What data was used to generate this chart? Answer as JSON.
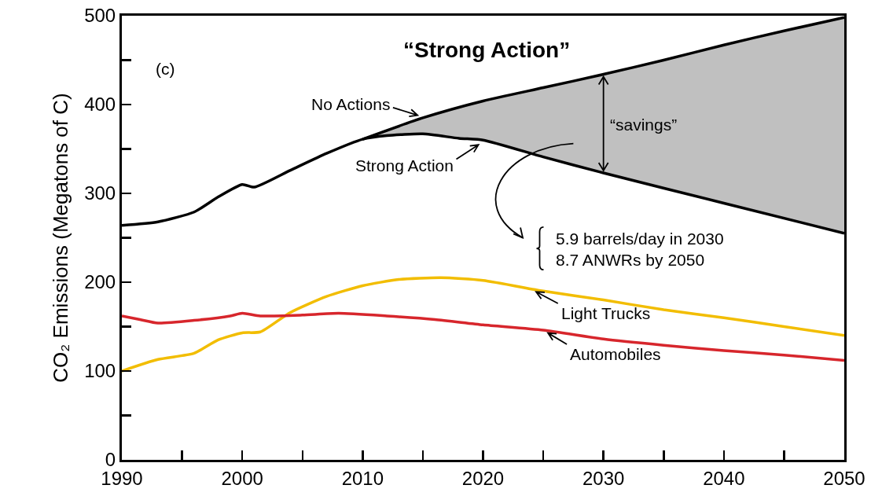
{
  "chart_data": {
    "type": "line",
    "title": "“Strong Action”",
    "ylabel": "CO₂ Emissions (Megatons of C)",
    "xlim": [
      1990,
      2050
    ],
    "ylim": [
      0,
      500
    ],
    "xticks": [
      1990,
      {
        "value": 1995,
        "label": null
      },
      2000,
      {
        "value": 2005,
        "label": null
      },
      2010,
      {
        "value": 2015,
        "label": null
      },
      2020,
      {
        "value": 2025,
        "label": null
      },
      2030,
      {
        "value": 2035,
        "label": null
      },
      2040,
      {
        "value": 2045,
        "label": null
      },
      2050
    ],
    "yticks": [
      0,
      {
        "value": 50,
        "label": null
      },
      100,
      {
        "value": 150,
        "label": null
      },
      200,
      {
        "value": 250,
        "label": null
      },
      300,
      {
        "value": 350,
        "label": null
      },
      400,
      {
        "value": 450,
        "label": null
      },
      500
    ],
    "grid": false,
    "series": [
      {
        "color": "#000000",
        "x": [
          2010,
          2015,
          2020,
          2025,
          2030,
          2035,
          2040,
          2045,
          2050
        ],
        "values": [
          361,
          385,
          404,
          419,
          434,
          450,
          467,
          483,
          498
        ]
      },
      {
        "color": "#000000",
        "x": [
          1990,
          1993,
          1996,
          1998,
          2000,
          2001,
          2004,
          2007,
          2010,
          2012,
          2015,
          2018,
          2020,
          2025,
          2030,
          2040,
          2050
        ],
        "values": [
          264,
          268,
          279,
          296,
          310,
          307,
          326,
          345,
          361,
          365,
          367,
          362,
          360,
          341,
          323,
          289,
          255
        ],
        "lower": [
          null,
          null,
          null,
          null,
          null,
          null,
          null,
          null,
          361,
          365,
          367,
          362,
          360,
          341,
          323,
          289,
          255
        ],
        "upper": [
          null,
          null,
          null,
          null,
          null,
          null,
          null,
          null,
          361,
          370,
          385,
          397,
          404,
          419,
          434,
          467,
          498
        ]
      },
      {
        "color": "#f2bd00",
        "x": [
          1990,
          1993,
          1996,
          1998,
          2000,
          2001.5,
          2004,
          2007,
          2010,
          2013,
          2016.5,
          2020,
          2025,
          2030,
          2035,
          2040,
          2045,
          2050
        ],
        "values": [
          100,
          113,
          120,
          135,
          143,
          144,
          166,
          184,
          196,
          203,
          205,
          202,
          190,
          180,
          169,
          160,
          150,
          140
        ]
      },
      {
        "color": "#d7262c",
        "x": [
          1990,
          1991.5,
          1993,
          1996,
          1999,
          2000,
          2001.5,
          2005,
          2008,
          2012,
          2016,
          2020,
          2025,
          2030,
          2035,
          2040,
          2045,
          2050
        ],
        "values": [
          162,
          158,
          154,
          157,
          162,
          165,
          162,
          163,
          165,
          162,
          158,
          152,
          146,
          136,
          129,
          123,
          118,
          112
        ]
      }
    ],
    "annotations": [
      "(c)",
      {
        "text": "No Actions",
        "x": 2015,
        "y": 386
      },
      {
        "text": "Strong Action",
        "x": 2020,
        "y": 358
      },
      "“savings”",
      "5.9 barrels/day in 2030\n8.7 ANWRs by 2050",
      {
        "text": "Light Trucks",
        "x": 2024,
        "y": 192
      },
      {
        "text": "Automobiles",
        "x": 2025,
        "y": 146
      }
    ]
  }
}
